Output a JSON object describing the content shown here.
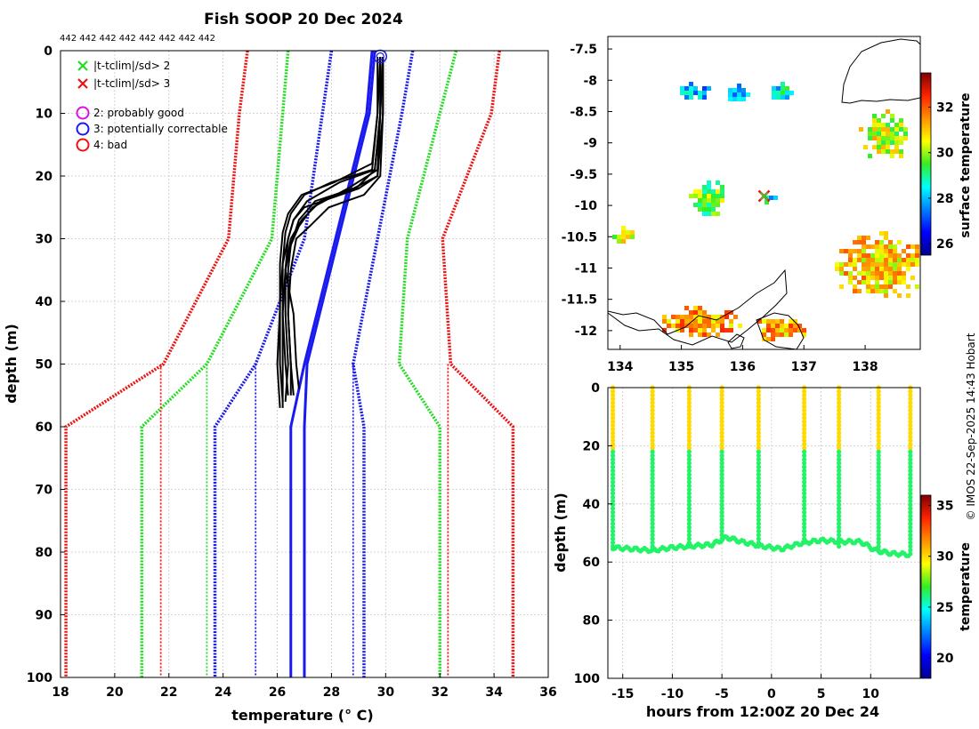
{
  "credit": "© IMOS 22-Sep-2025 14:43 Hobart",
  "colors": {
    "green": "#22dd22",
    "red": "#ee1111",
    "blue": "#1a1aee",
    "black": "#000000",
    "magenta": "#dd11dd",
    "grid": "#bbbbbb"
  },
  "chart_data": [
    {
      "id": "profile",
      "type": "line",
      "title": "Fish SOOP 20 Dec 2024",
      "top_annotation": "442 442 442 442 442 442 442 442",
      "xlabel": "temperature (° C)",
      "ylabel": "depth (m)",
      "xlim": [
        18,
        36
      ],
      "ylim": [
        100,
        0
      ],
      "xticks": [
        18,
        20,
        22,
        24,
        26,
        28,
        30,
        32,
        34,
        36
      ],
      "yticks": [
        0,
        10,
        20,
        30,
        40,
        50,
        60,
        70,
        80,
        90,
        100
      ],
      "grid": true,
      "legend": [
        {
          "symbol": "x",
          "color": "#22dd22",
          "label": "|t-tclim|/sd> 2"
        },
        {
          "symbol": "x",
          "color": "#ee1111",
          "label": "|t-tclim|/sd> 3"
        },
        {
          "symbol": "o",
          "color": "#dd11dd",
          "label": "2: probably good"
        },
        {
          "symbol": "o",
          "color": "#1a1aee",
          "label": "3: potentially correctable"
        },
        {
          "symbol": "o",
          "color": "#ee1111",
          "label": "4: bad"
        }
      ],
      "series": [
        {
          "name": "clim -3sd",
          "color": "#ee1111",
          "style": "dotted",
          "depth": [
            0,
            10,
            30,
            50,
            60,
            100
          ],
          "temp": [
            24.9,
            24.6,
            24.2,
            21.8,
            18.2,
            18.2
          ]
        },
        {
          "name": "clim +3sd",
          "color": "#ee1111",
          "style": "dotted",
          "depth": [
            0,
            10,
            30,
            50,
            60,
            100
          ],
          "temp": [
            34.2,
            33.9,
            32.1,
            32.4,
            34.7,
            34.7
          ]
        },
        {
          "name": "clim -2sd",
          "color": "#22dd22",
          "style": "dotted",
          "depth": [
            0,
            30,
            50,
            60,
            100
          ],
          "temp": [
            26.4,
            25.8,
            23.4,
            21.0,
            21.0
          ]
        },
        {
          "name": "clim +2sd",
          "color": "#22dd22",
          "style": "dotted",
          "depth": [
            0,
            30,
            50,
            60,
            100
          ],
          "temp": [
            32.6,
            30.8,
            30.5,
            32.0,
            32.0
          ]
        },
        {
          "name": "clim -1sd",
          "color": "#1a1aee",
          "style": "dotted",
          "depth": [
            0,
            30,
            50,
            60,
            100
          ],
          "temp": [
            28.0,
            27.0,
            25.2,
            23.7,
            23.7
          ]
        },
        {
          "name": "clim +1sd",
          "color": "#1a1aee",
          "style": "dotted",
          "depth": [
            0,
            10,
            50,
            60,
            100
          ],
          "temp": [
            31.0,
            30.6,
            28.8,
            29.2,
            29.2
          ]
        },
        {
          "name": "clim mean",
          "color": "#1a1aee",
          "style": "solid",
          "depth": [
            0,
            10,
            50,
            60,
            100
          ],
          "temp": [
            29.5,
            29.3,
            27.0,
            26.5,
            26.5
          ]
        },
        {
          "name": "clim mean (right)",
          "color": "#1a1aee",
          "style": "solid",
          "depth": [
            0,
            10,
            50,
            60,
            100
          ],
          "temp": [
            29.6,
            29.4,
            27.1,
            27.0,
            27.0
          ]
        },
        {
          "name": "limit -3sd below 50m",
          "color": "#ee1111",
          "style": "dotted",
          "depth": [
            50,
            100
          ],
          "temp": [
            21.7,
            21.7
          ]
        },
        {
          "name": "limit +3sd below 50m",
          "color": "#ee1111",
          "style": "dotted",
          "depth": [
            50,
            100
          ],
          "temp": [
            32.3,
            32.3
          ]
        },
        {
          "name": "limit -2sd below 50m",
          "color": "#22dd22",
          "style": "dotted",
          "depth": [
            50,
            100
          ],
          "temp": [
            23.4,
            23.4
          ]
        },
        {
          "name": "limit -1sd below 50m",
          "color": "#1a1aee",
          "style": "dotted",
          "depth": [
            50,
            100
          ],
          "temp": [
            25.2,
            25.2
          ]
        },
        {
          "name": "limit +1sd below 50m",
          "color": "#1a1aee",
          "style": "dotted",
          "depth": [
            50,
            100
          ],
          "temp": [
            28.8,
            28.8
          ]
        }
      ],
      "profiles": [
        {
          "depth": [
            1,
            10,
            19,
            21,
            24,
            27,
            30,
            34,
            40,
            50,
            56
          ],
          "temp": [
            29.8,
            29.8,
            29.6,
            28.3,
            27.1,
            26.6,
            26.4,
            26.2,
            26.1,
            26.1,
            26.2
          ]
        },
        {
          "depth": [
            1,
            10,
            19,
            22,
            25,
            28,
            31,
            35,
            42,
            50,
            55
          ],
          "temp": [
            29.9,
            29.8,
            29.7,
            28.6,
            27.3,
            26.8,
            26.5,
            26.3,
            26.2,
            26.3,
            26.4
          ]
        },
        {
          "depth": [
            1,
            10,
            18,
            21,
            23,
            26,
            29,
            34,
            41,
            50,
            57
          ],
          "temp": [
            29.7,
            29.7,
            29.5,
            28.1,
            26.9,
            26.4,
            26.2,
            26.1,
            26.1,
            26.0,
            26.1
          ]
        },
        {
          "depth": [
            1,
            10,
            20,
            23,
            25,
            28,
            30,
            35,
            42,
            50,
            55
          ],
          "temp": [
            29.9,
            29.9,
            29.8,
            29.2,
            27.9,
            27.2,
            26.7,
            26.5,
            26.4,
            26.5,
            26.6
          ]
        },
        {
          "depth": [
            1,
            10,
            19,
            22,
            24,
            27,
            30,
            35,
            42,
            50,
            56
          ],
          "temp": [
            29.8,
            29.8,
            29.6,
            28.9,
            27.6,
            26.9,
            26.5,
            26.3,
            26.3,
            26.4,
            26.3
          ]
        },
        {
          "depth": [
            1,
            10,
            20,
            22,
            25,
            27,
            30,
            35,
            42,
            50,
            54
          ],
          "temp": [
            29.9,
            29.8,
            29.7,
            29.0,
            27.0,
            26.6,
            26.4,
            26.3,
            26.6,
            26.7,
            26.8
          ]
        },
        {
          "depth": [
            1,
            10,
            19,
            21,
            23,
            26,
            29,
            34,
            40,
            50,
            57
          ],
          "temp": [
            29.8,
            29.7,
            29.5,
            28.0,
            27.0,
            26.5,
            26.3,
            26.2,
            26.2,
            26.2,
            26.2
          ]
        },
        {
          "depth": [
            1,
            10,
            20,
            22,
            24,
            27,
            31,
            35,
            42,
            50,
            55
          ],
          "temp": [
            29.9,
            29.9,
            29.7,
            28.8,
            27.4,
            26.8,
            26.5,
            26.4,
            26.4,
            26.5,
            26.5
          ]
        }
      ],
      "flag_points": [
        {
          "temp": 29.8,
          "depth": 0.5,
          "flag": "3: potentially correctable"
        }
      ]
    },
    {
      "id": "map",
      "type": "heatmap",
      "xlim": [
        133.8,
        138.9
      ],
      "ylim": [
        -12.3,
        -7.3
      ],
      "xticks": [
        134,
        135,
        136,
        137,
        138
      ],
      "yticks": [
        -7.5,
        -8,
        -8.5,
        -9,
        -9.5,
        -10,
        -10.5,
        -11,
        -11.5,
        -12
      ],
      "ytick_labels": [
        "-7.5",
        "-8",
        "-8.5",
        "-9",
        "-9.5",
        "-10",
        "-10.5",
        "-11",
        "-11.5",
        "-12"
      ],
      "colorbar": {
        "label": "surface temperature",
        "range": [
          25.5,
          33.5
        ],
        "ticks": [
          26,
          28,
          30,
          32
        ]
      },
      "patches": [
        {
          "lon": 135.2,
          "lat": -8.15,
          "value": 27.8
        },
        {
          "lon": 135.9,
          "lat": -8.2,
          "value": 28.1
        },
        {
          "lon": 136.6,
          "lat": -8.15,
          "value": 28.5
        },
        {
          "lon": 138.3,
          "lat": -8.85,
          "value": 30.3
        },
        {
          "lon": 135.4,
          "lat": -9.85,
          "value": 29.6
        },
        {
          "lon": 136.4,
          "lat": -9.85,
          "value": 28.4
        },
        {
          "lon": 138.2,
          "lat": -10.95,
          "value": 31.0
        },
        {
          "lon": 135.3,
          "lat": -11.85,
          "value": 31.4
        },
        {
          "lon": 136.6,
          "lat": -11.95,
          "value": 31.3
        },
        {
          "lon": 134.0,
          "lat": -10.45,
          "value": 30.4
        }
      ],
      "track": [
        {
          "lon": 136.35,
          "lat": -9.85
        }
      ]
    },
    {
      "id": "timeseries",
      "type": "scatter",
      "xlabel": "hours from 12:00Z 20 Dec 24",
      "ylabel": "depth (m)",
      "xlim": [
        -16.5,
        15
      ],
      "ylim": [
        100,
        0
      ],
      "xticks": [
        -15,
        -10,
        -5,
        0,
        5,
        10
      ],
      "yticks": [
        0,
        20,
        40,
        60,
        80,
        100
      ],
      "grid": true,
      "colorbar": {
        "label": "temperature",
        "range": [
          18,
          36
        ],
        "ticks": [
          20,
          25,
          30,
          35
        ]
      },
      "cast_hours": [
        -16.0,
        -12.0,
        -8.3,
        -5.0,
        -1.3,
        3.3,
        6.8,
        10.8,
        14.0
      ],
      "cast_bottom_depth": [
        55,
        56,
        55,
        53,
        55,
        54,
        55,
        57,
        58
      ],
      "surface_temp": 30.0,
      "deep_temp": 26.3,
      "thermocline_depth": 22,
      "bottom_trace": [
        {
          "hour": -16.0,
          "depth": 55
        },
        {
          "hour": -14.0,
          "depth": 55.5
        },
        {
          "hour": -12.0,
          "depth": 56
        },
        {
          "hour": -10.0,
          "depth": 55
        },
        {
          "hour": -8.0,
          "depth": 54.5
        },
        {
          "hour": -6.0,
          "depth": 54
        },
        {
          "hour": -4.5,
          "depth": 51.5
        },
        {
          "hour": -3.0,
          "depth": 53
        },
        {
          "hour": -1.0,
          "depth": 54.5
        },
        {
          "hour": 1.0,
          "depth": 55.5
        },
        {
          "hour": 3.0,
          "depth": 53.5
        },
        {
          "hour": 5.0,
          "depth": 52.5
        },
        {
          "hour": 7.0,
          "depth": 53
        },
        {
          "hour": 9.0,
          "depth": 53
        },
        {
          "hour": 10.5,
          "depth": 56
        },
        {
          "hour": 12.0,
          "depth": 57
        },
        {
          "hour": 14.0,
          "depth": 57.5
        }
      ]
    }
  ]
}
